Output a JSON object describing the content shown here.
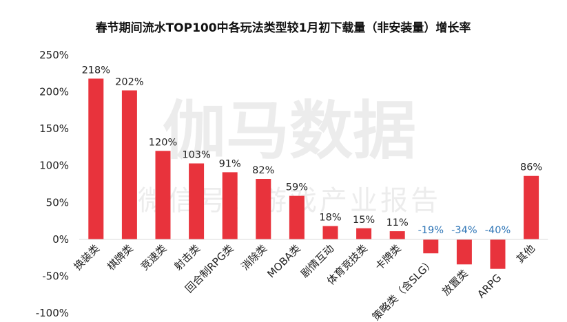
{
  "chart_data": {
    "type": "bar",
    "title": "春节期间流水TOP100中各玩法类型较1月初下载量（非安装量）增长率",
    "categories": [
      "换装类",
      "棋牌类",
      "竞速类",
      "射击类",
      "回合制RPG类",
      "消除类",
      "MOBA类",
      "剧情互动",
      "体育竞技类",
      "卡牌类",
      "策略类（含SLG）",
      "放置类",
      "ARPG",
      "其他"
    ],
    "values": [
      218,
      202,
      120,
      103,
      91,
      82,
      59,
      18,
      15,
      11,
      -19,
      -34,
      -40,
      86
    ],
    "data_labels": [
      "218%",
      "202%",
      "120%",
      "103%",
      "91%",
      "82%",
      "59%",
      "18%",
      "15%",
      "11%",
      "-19%",
      "-34%",
      "-40%",
      "86%"
    ],
    "ylim": [
      -100,
      250
    ],
    "yticks": [
      250,
      200,
      150,
      100,
      50,
      0,
      -50,
      -100
    ],
    "ytick_labels": [
      "250%",
      "200%",
      "150%",
      "100%",
      "50%",
      "0%",
      "-50%",
      "-100%"
    ],
    "xlabel": "",
    "ylabel": "",
    "grid": false,
    "bar_color": "#e8333c",
    "positive_label_color": "#222222",
    "negative_label_color": "#2e75b6"
  },
  "watermark": {
    "line1": "伽马数据",
    "line2": "微信号：游戏产业报告"
  }
}
